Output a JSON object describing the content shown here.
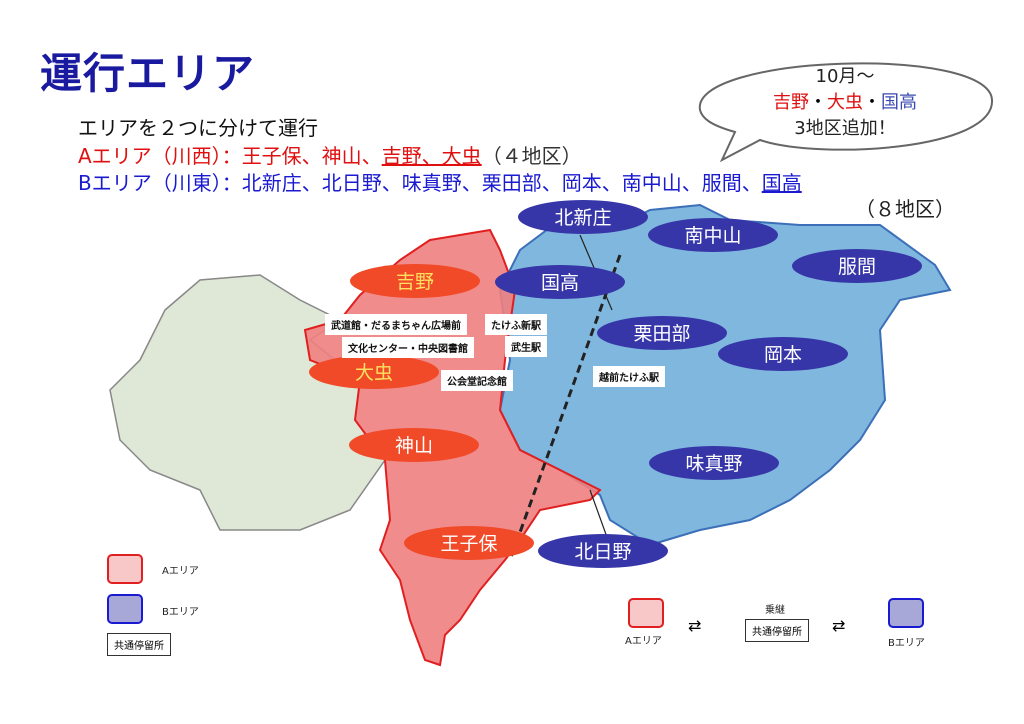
{
  "title": "運行エリア",
  "intro": "エリアを２つに分けて運行",
  "area_a": {
    "label": "Aエリア（川西）：",
    "plain": "王子保、神山、",
    "new": "吉野、大虫",
    "count": "（４地区）",
    "color": "#e01010"
  },
  "area_b": {
    "label": "Bエリア（川東）：",
    "plain": "北新庄、北日野、味真野、栗田部、岡本、南中山、服間、",
    "new": "国高",
    "count": "（８地区）",
    "color": "#1a1ad0"
  },
  "bubble": {
    "line1": "10月～",
    "red1": "吉野",
    "sep1": "・",
    "red2": "大虫",
    "sep2": "・",
    "blue1": "国高",
    "line3": "3地区追加！"
  },
  "map": {
    "a_districts": [
      "吉野",
      "大虫",
      "神山",
      "王子保"
    ],
    "b_districts": [
      "北新庄",
      "南中山",
      "服間",
      "国高",
      "栗田部",
      "岡本",
      "味真野",
      "北日野"
    ],
    "stops": [
      "武道館・だるまちゃん広場前",
      "たけふ新駅",
      "文化センター・中央図書館",
      "武生駅",
      "公会堂記念館",
      "越前たけふ駅"
    ]
  },
  "legend": {
    "a": "Aエリア",
    "b": "Bエリア",
    "common": "共通停留所"
  },
  "transfer": {
    "title": "乗継",
    "a": "Aエリア",
    "common": "共通停留所",
    "b": "Bエリア"
  },
  "colors": {
    "title": "#1a1aa0",
    "a_fill": "#f08080",
    "b_fill": "#6aaad8",
    "a_label": "#f04a28",
    "b_label": "#3636a8"
  }
}
